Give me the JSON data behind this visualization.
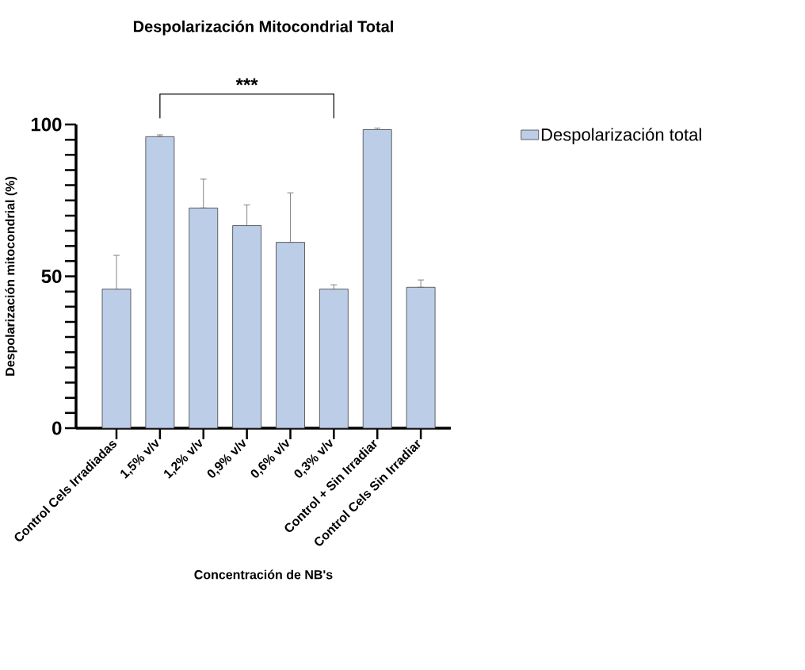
{
  "chart_data": {
    "type": "bar",
    "title": "Despolarización Mitocondrial Total",
    "xlabel": "Concentración de NB's",
    "ylabel": "Despolarización mitocondrial (%)",
    "categories": [
      "Control Cels Irradiadas",
      "1,5% v/v",
      "1,2% v/v",
      "0,9% v/v",
      "0,6% v/v",
      "0,3% v/v",
      "Control + Sin Irradiar",
      "Control Cels Sin Irradiar"
    ],
    "series": [
      {
        "name": "Despolarización total",
        "color": "#bccde8",
        "values": [
          45.8,
          96.0,
          72.5,
          66.7,
          61.2,
          45.8,
          98.3,
          46.4
        ],
        "errors": [
          [
            45.8,
            56.9
          ],
          [
            96.0,
            96.6
          ],
          [
            72.5,
            82.0
          ],
          [
            66.7,
            73.5
          ],
          [
            61.2,
            77.5
          ],
          [
            45.8,
            47.2
          ],
          [
            98.3,
            98.8
          ],
          [
            46.4,
            48.8
          ]
        ]
      }
    ],
    "ylim": [
      0,
      100
    ],
    "yticks": [
      0,
      {
        "value": 5,
        "label": null
      },
      {
        "value": 10,
        "label": null
      },
      {
        "value": 15,
        "label": null
      },
      {
        "value": 20,
        "label": null
      },
      {
        "value": 25,
        "label": null
      },
      {
        "value": 30,
        "label": null
      },
      {
        "value": 35,
        "label": null
      },
      {
        "value": 40,
        "label": null
      },
      {
        "value": 45,
        "label": null
      },
      50,
      {
        "value": 55,
        "label": null
      },
      {
        "value": 60,
        "label": null
      },
      {
        "value": 65,
        "label": null
      },
      {
        "value": 70,
        "label": null
      },
      {
        "value": 75,
        "label": null
      },
      {
        "value": 80,
        "label": null
      },
      {
        "value": 85,
        "label": null
      },
      {
        "value": 90,
        "label": null
      },
      {
        "value": 95,
        "label": null
      },
      100
    ],
    "annotations": [
      "***"
    ],
    "grid": false,
    "legend": "top right"
  }
}
